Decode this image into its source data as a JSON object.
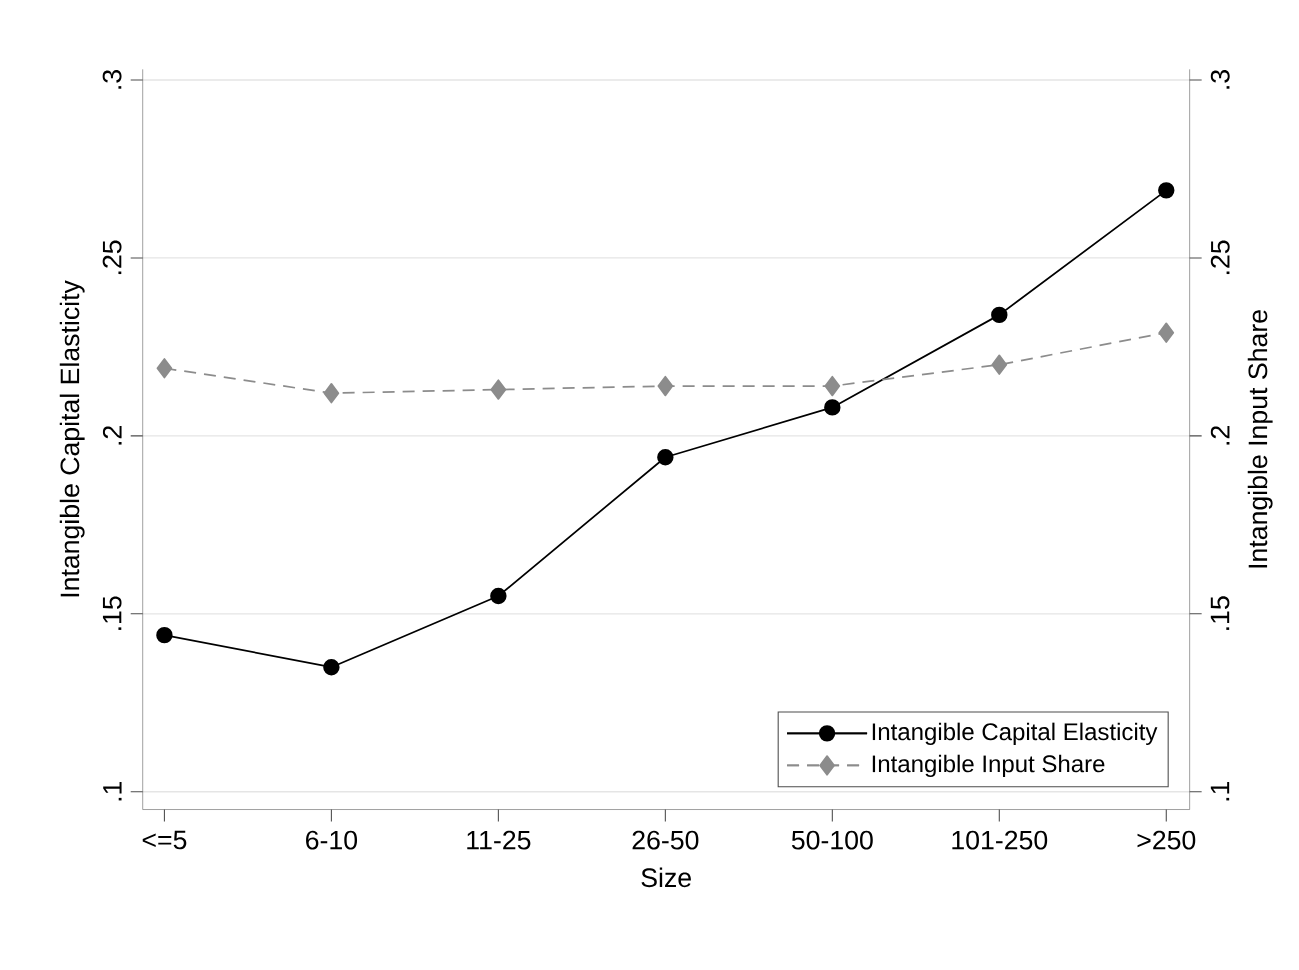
{
  "chart_data": {
    "type": "line",
    "xlabel": "Size",
    "ylabel": "Intangible Capital Elasticity",
    "y2label": "Intangible Input Share",
    "categories": [
      "<=5",
      "6-10",
      "11-25",
      "26-50",
      "50-100",
      "101-250",
      ">250"
    ],
    "series": [
      {
        "name": "Intangible Capital Elasticity",
        "color": "#000000",
        "marker": "circle",
        "line_style": "solid",
        "values": [
          0.144,
          0.135,
          0.155,
          0.194,
          0.208,
          0.234,
          0.269
        ]
      },
      {
        "name": "Intangible Input Share",
        "color": "#8c8c8c",
        "marker": "diamond",
        "line_style": "dashed",
        "axis": "y2",
        "values": [
          0.219,
          0.212,
          0.213,
          0.214,
          0.214,
          0.22,
          0.229
        ]
      }
    ],
    "ylim": [
      0.095,
      0.303
    ],
    "yticks": [
      {
        "value": 0.1,
        "label": ".1"
      },
      {
        "value": 0.15,
        "label": ".15"
      },
      {
        "value": 0.2,
        "label": ".2"
      },
      {
        "value": 0.25,
        "label": ".25"
      },
      {
        "value": 0.3,
        "label": ".3"
      }
    ],
    "y2lim": [
      0.095,
      0.303
    ],
    "y2ticks": [
      {
        "value": 0.1,
        "label": ".1"
      },
      {
        "value": 0.15,
        "label": ".15"
      },
      {
        "value": 0.2,
        "label": ".2"
      },
      {
        "value": 0.25,
        "label": ".25"
      },
      {
        "value": 0.3,
        "label": ".3"
      }
    ],
    "grid": "y",
    "legend": "bottom right"
  }
}
